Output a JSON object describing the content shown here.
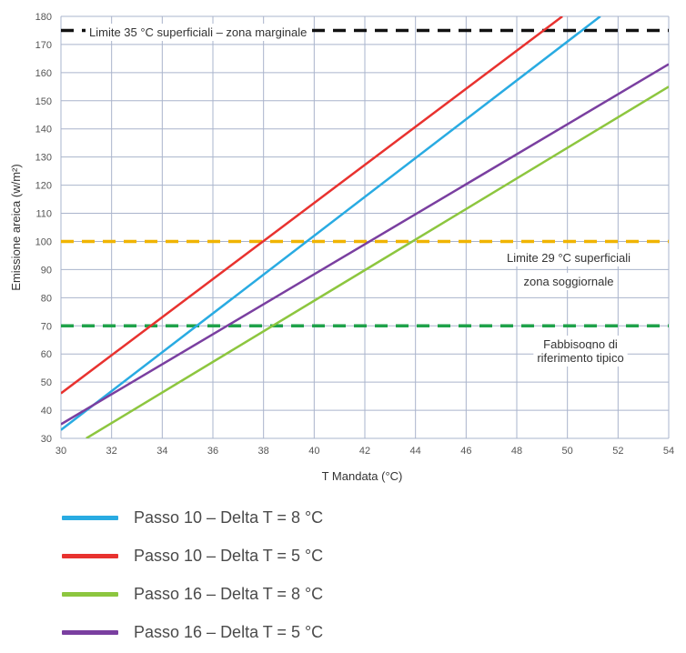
{
  "chart_data": {
    "type": "line",
    "xlabel": "T Mandata (°C)",
    "ylabel": "Emissione areica (w/m²)",
    "xlim": [
      30,
      54
    ],
    "ylim": [
      30,
      180
    ],
    "x_ticks": [
      30,
      32,
      34,
      36,
      38,
      40,
      42,
      44,
      46,
      48,
      50,
      52,
      54
    ],
    "y_ticks": [
      30,
      40,
      50,
      60,
      70,
      80,
      90,
      100,
      110,
      120,
      130,
      140,
      150,
      160,
      170,
      180
    ],
    "grid": true,
    "series": [
      {
        "name": "Passo 10 – Delta T = 8 °C",
        "color": "#29abe2",
        "x": [
          30,
          51.3
        ],
        "y": [
          33,
          180
        ]
      },
      {
        "name": "Passo 10 – Delta T = 5 °C",
        "color": "#e8322f",
        "x": [
          30,
          49.8
        ],
        "y": [
          46,
          180
        ]
      },
      {
        "name": "Passo 16 – Delta T = 8 °C",
        "color": "#8dc63f",
        "x": [
          31,
          54
        ],
        "y": [
          30,
          155
        ]
      },
      {
        "name": "Passo 16 – Delta T = 5 °C",
        "color": "#7a3fa0",
        "x": [
          30,
          54
        ],
        "y": [
          35,
          163
        ]
      }
    ],
    "reference_lines": [
      {
        "y": 175,
        "color": "#111111",
        "label_lines": [
          "Limite 35 °C superficiali – zona marginale"
        ]
      },
      {
        "y": 100,
        "color": "#f0b400",
        "label_lines": [
          "Limite 29 °C superficiali",
          "zona soggiornale"
        ]
      },
      {
        "y": 70,
        "color": "#1fa24a",
        "label_lines": [
          "Fabbisogno di",
          "riferimento tipico"
        ]
      }
    ]
  },
  "legend": {
    "items": [
      {
        "label": "Passo 10 – Delta T = 8 °C",
        "color": "#29abe2"
      },
      {
        "label": "Passo 10 – Delta T = 5 °C",
        "color": "#e8322f"
      },
      {
        "label": "Passo 16 – Delta T = 8 °C",
        "color": "#8dc63f"
      },
      {
        "label": "Passo 16 – Delta T = 5 °C",
        "color": "#7a3fa0"
      }
    ]
  }
}
